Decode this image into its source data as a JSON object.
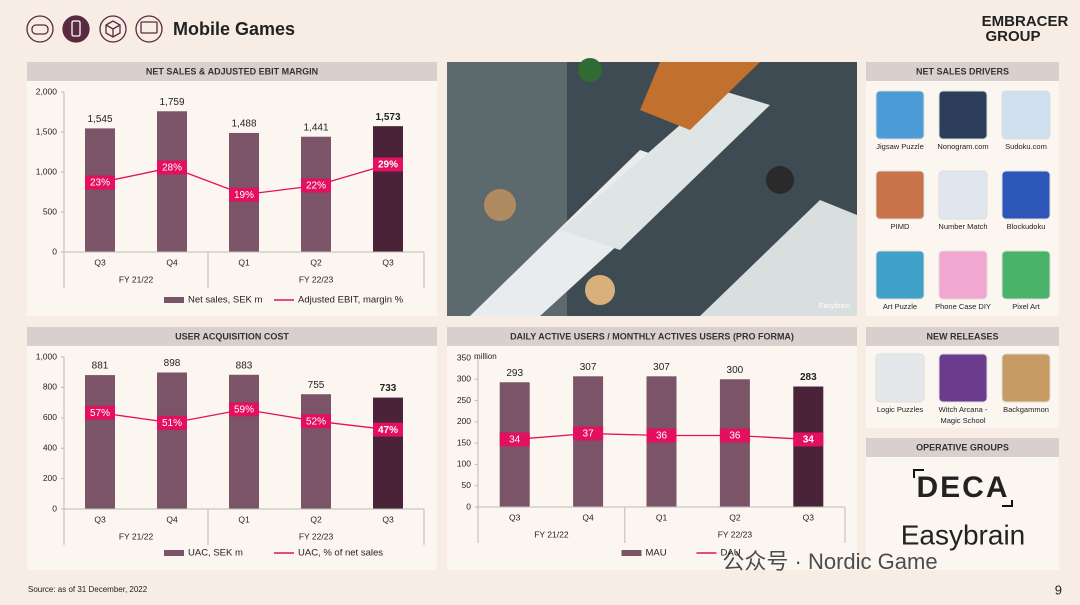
{
  "header": {
    "title": "Mobile Games",
    "logo_top": "EMBRACER",
    "logo_bottom": "GROUP"
  },
  "chart_data": [
    {
      "type": "bar",
      "title": "NET SALES & ADJUSTED EBIT MARGIN",
      "categories": [
        "Q3",
        "Q4",
        "Q1",
        "Q2",
        "Q3"
      ],
      "category_groups": [
        {
          "label": "FY 21/22",
          "count": 2
        },
        {
          "label": "FY 22/23",
          "count": 3
        }
      ],
      "ylim": [
        0,
        2000
      ],
      "yticks": [
        0,
        500,
        {
          "value": 1000,
          "label": "1,000"
        },
        {
          "value": 1500,
          "label": "1,500"
        },
        {
          "value": 2000,
          "label": "2,000"
        }
      ],
      "y2lim": [
        0,
        53
      ],
      "series": [
        {
          "name": "Net sales, SEK m",
          "type": "bar",
          "color": "#7b5468",
          "colors": [
            "#7b5468",
            "#7b5468",
            "#7b5468",
            "#7b5468",
            "#4b2338"
          ],
          "values": [
            1545,
            1759,
            1488,
            1441,
            1573
          ],
          "value_labels": [
            "1,545",
            "1,759",
            "1,488",
            "1,441",
            "1,573"
          ]
        },
        {
          "name": "Adjusted EBIT, margin %",
          "type": "line",
          "axis": "y2",
          "color": "#e2105d",
          "values": [
            23,
            28,
            19,
            22,
            29
          ],
          "value_labels": [
            "23%",
            "28%",
            "19%",
            "22%",
            "29%"
          ]
        }
      ]
    },
    {
      "type": "bar",
      "title": "USER ACQUISITION COST",
      "categories": [
        "Q3",
        "Q4",
        "Q1",
        "Q2",
        "Q3"
      ],
      "category_groups": [
        {
          "label": "FY 21/22",
          "count": 2
        },
        {
          "label": "FY 22/23",
          "count": 3
        }
      ],
      "ylim": [
        0,
        1000
      ],
      "yticks": [
        0,
        200,
        400,
        600,
        800,
        {
          "value": 1000,
          "label": "1,000"
        }
      ],
      "y2lim": [
        0,
        90
      ],
      "series": [
        {
          "name": "UAC, SEK m",
          "type": "bar",
          "color": "#7b5468",
          "colors": [
            "#7b5468",
            "#7b5468",
            "#7b5468",
            "#7b5468",
            "#4b2338"
          ],
          "values": [
            881,
            898,
            883,
            755,
            733
          ]
        },
        {
          "name": "UAC, % of net sales",
          "type": "line",
          "axis": "y2",
          "color": "#e2105d",
          "values": [
            57,
            51,
            59,
            52,
            47
          ],
          "value_labels": [
            "57%",
            "51%",
            "59%",
            "52%",
            "47%"
          ]
        }
      ]
    },
    {
      "type": "bar",
      "title": "DAILY ACTIVE USERS / MONTHLY ACTIVES USERS (PRO FORMA)",
      "y_unit": "million",
      "categories": [
        "Q3",
        "Q4",
        "Q1",
        "Q2",
        "Q3"
      ],
      "category_groups": [
        {
          "label": "FY 21/22",
          "count": 2
        },
        {
          "label": "FY 22/23",
          "count": 3
        }
      ],
      "ylim": [
        0,
        350
      ],
      "yticks": [
        0,
        50,
        100,
        150,
        200,
        250,
        300,
        350
      ],
      "y2lim": [
        0,
        75
      ],
      "series": [
        {
          "name": "MAU",
          "type": "bar",
          "color": "#7b5468",
          "colors": [
            "#7b5468",
            "#7b5468",
            "#7b5468",
            "#7b5468",
            "#4b2338"
          ],
          "values": [
            293,
            307,
            307,
            300,
            283
          ]
        },
        {
          "name": "DAU",
          "type": "line",
          "axis": "y2",
          "color": "#e2105d",
          "values": [
            34,
            37,
            36,
            36,
            34
          ]
        }
      ]
    }
  ],
  "photo_caption": "Easybrain",
  "drivers": {
    "title": "NET SALES DRIVERS",
    "apps": [
      {
        "label": [
          "Jigsaw Puzzle"
        ]
      },
      {
        "label": [
          "Nonogram.com"
        ]
      },
      {
        "label": [
          "Sudoku.com"
        ]
      },
      {
        "label": [
          "PIMD"
        ]
      },
      {
        "label": [
          "Number Match"
        ]
      },
      {
        "label": [
          "Blockudoku"
        ]
      },
      {
        "label": [
          "Art Puzzle"
        ]
      },
      {
        "label": [
          "Phone Case DIY"
        ]
      },
      {
        "label": [
          "Pixel Art"
        ]
      }
    ]
  },
  "releases": {
    "title": "NEW RELEASES",
    "apps": [
      {
        "label": [
          "Logic Puzzles"
        ]
      },
      {
        "label": [
          "Witch Arcana -",
          "Magic School"
        ]
      },
      {
        "label": [
          "Backgammon"
        ]
      }
    ]
  },
  "operative_groups": {
    "title": "OPERATIVE GROUPS",
    "groups": [
      "DECA",
      "Easybrain"
    ]
  },
  "source": "Source: as of 31 December, 2022",
  "page_number": "9",
  "watermark": "公众号 · Nordic Game"
}
